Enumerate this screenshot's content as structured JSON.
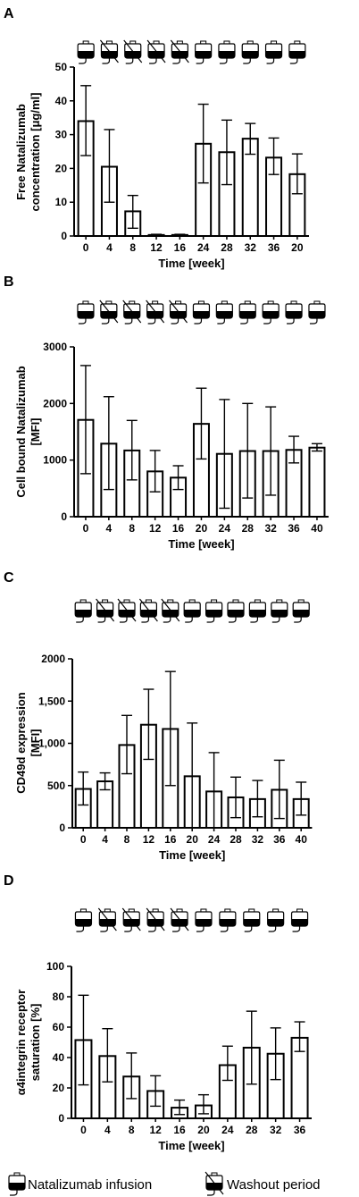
{
  "chart_data": [
    {
      "type": "bar",
      "panel": "A",
      "categories": [
        "0",
        "4",
        "8",
        "12",
        "16",
        "24",
        "28",
        "32",
        "36",
        "20"
      ],
      "values": [
        34,
        20.5,
        7.3,
        0.3,
        0.3,
        27.3,
        24.8,
        28.8,
        23.2,
        18.3
      ],
      "error_high": [
        44.5,
        31.5,
        12,
        0.5,
        0.5,
        39,
        34.3,
        33.3,
        29,
        24.3
      ],
      "error_low": [
        23.8,
        10,
        2.3,
        0.2,
        0.2,
        15.7,
        15.2,
        24.2,
        18.2,
        12.5
      ],
      "infusion": [
        "infusion",
        "washout",
        "washout",
        "washout",
        "washout",
        "infusion",
        "infusion",
        "infusion",
        "infusion",
        "infusion"
      ],
      "xlabel": "Time [week]",
      "ylabel": [
        "Free Natalizumab",
        "concentration [μg/ml]"
      ],
      "ylim": [
        0,
        50
      ],
      "yticks": [
        "0",
        "10",
        "20",
        "30",
        "40",
        "50"
      ]
    },
    {
      "type": "bar",
      "panel": "B",
      "categories": [
        "0",
        "4",
        "8",
        "12",
        "16",
        "20",
        "24",
        "28",
        "32",
        "36",
        "40"
      ],
      "values": [
        1710,
        1290,
        1170,
        800,
        690,
        1640,
        1110,
        1160,
        1160,
        1180,
        1220
      ],
      "error_high": [
        2670,
        2120,
        1700,
        1170,
        900,
        2270,
        2070,
        2000,
        1940,
        1420,
        1290
      ],
      "error_low": [
        760,
        480,
        650,
        440,
        480,
        1020,
        150,
        330,
        380,
        950,
        1160
      ],
      "infusion": [
        "infusion",
        "washout",
        "washout",
        "washout",
        "washout",
        "infusion",
        "infusion",
        "infusion",
        "infusion",
        "infusion",
        "infusion"
      ],
      "xlabel": "Time [week]",
      "ylabel": [
        "Cell bound Natalizumab",
        "[MFI]"
      ],
      "ylim": [
        0,
        3000
      ],
      "yticks": [
        "0",
        "1000",
        "2000",
        "3000"
      ]
    },
    {
      "type": "bar",
      "panel": "C",
      "categories": [
        "0",
        "4",
        "8",
        "12",
        "16",
        "20",
        "24",
        "28",
        "32",
        "36",
        "40"
      ],
      "values": [
        460,
        550,
        980,
        1220,
        1170,
        610,
        430,
        360,
        340,
        450,
        340
      ],
      "error_high": [
        660,
        650,
        1330,
        1640,
        1850,
        1240,
        890,
        600,
        560,
        800,
        540
      ],
      "error_low": [
        270,
        450,
        640,
        810,
        500,
        0,
        0,
        120,
        130,
        110,
        150
      ],
      "infusion": [
        "infusion",
        "washout",
        "washout",
        "washout",
        "washout",
        "infusion",
        "infusion",
        "infusion",
        "infusion",
        "infusion",
        "infusion"
      ],
      "xlabel": "Time [week]",
      "ylabel": [
        "CD49d expression",
        "[MFI]"
      ],
      "ylim": [
        0,
        2000
      ],
      "yticks": [
        "0",
        "500",
        "1,000",
        "1,500",
        "2000"
      ]
    },
    {
      "type": "bar",
      "panel": "D",
      "categories": [
        "0",
        "4",
        "8",
        "12",
        "16",
        "20",
        "24",
        "28",
        "32",
        "36"
      ],
      "values": [
        51.5,
        41,
        27.5,
        18,
        7,
        8.5,
        35,
        46.5,
        42.5,
        53
      ],
      "error_high": [
        81,
        59,
        43,
        28,
        12,
        15.5,
        47.5,
        70.5,
        59.5,
        63.5
      ],
      "error_low": [
        22,
        24,
        13,
        8,
        2.5,
        3,
        25,
        22.5,
        25.5,
        44
      ],
      "infusion": [
        "infusion",
        "washout",
        "washout",
        "washout",
        "washout",
        "infusion",
        "infusion",
        "infusion",
        "infusion",
        "infusion"
      ],
      "xlabel": "Time [week]",
      "ylabel": [
        "α4integrin receptor",
        "saturation [%]"
      ],
      "ylim": [
        0,
        100
      ],
      "yticks": [
        "0",
        "20",
        "40",
        "60",
        "80",
        "100"
      ]
    }
  ],
  "legend": {
    "infusion_label": "Natalizumab infusion",
    "washout_label": "Washout period",
    "infusion_icon": "infusion-bag-icon",
    "washout_icon": "crossed-infusion-bag-icon"
  }
}
